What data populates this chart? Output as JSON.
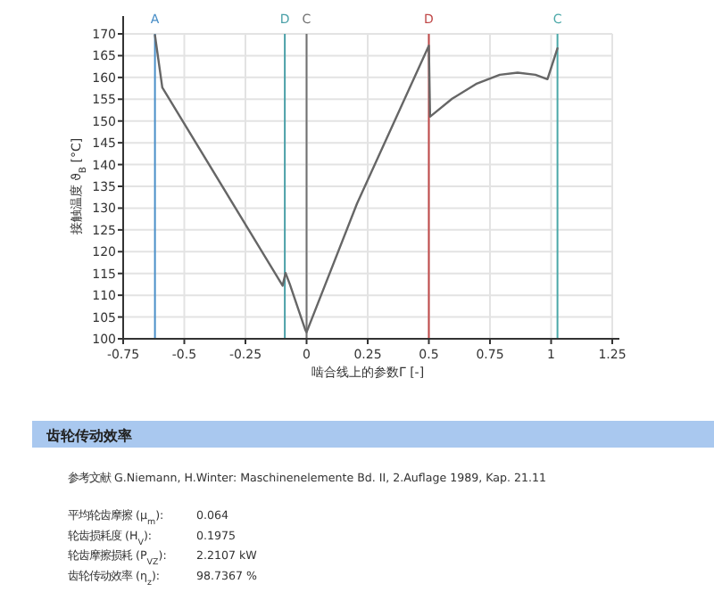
{
  "chart_data": {
    "type": "line",
    "xlabel": "啮合线上的参数Γ [-]",
    "ylabel": "接触温度 ϑ$_{B}$ [°C]",
    "x": [
      -0.62,
      -0.59,
      -0.098,
      -0.086,
      -0.069,
      -0.005,
      0,
      0.206,
      0.5,
      0.505,
      0.595,
      0.693,
      0.79,
      0.863,
      0.936,
      0.985,
      1.026
    ],
    "series": [
      {
        "color": "#666666",
        "values": [
          169.7,
          157.7,
          112.2,
          115.1,
          112.6,
          102,
          101.5,
          131,
          167.3,
          151,
          155.1,
          158.5,
          160.6,
          161.1,
          160.6,
          159.6,
          166.7
        ]
      }
    ],
    "xlim": [
      -0.75,
      1.25
    ],
    "ylim": [
      100,
      170
    ],
    "xticks": [
      -0.75,
      -0.5,
      -0.25,
      0,
      0.25,
      0.5,
      0.75,
      1,
      1.25
    ],
    "yticks": [
      100,
      105,
      110,
      115,
      120,
      125,
      130,
      135,
      140,
      145,
      150,
      155,
      160,
      165,
      170
    ],
    "grid": true,
    "marker": "none",
    "line_style": "solid",
    "ref_lines": [
      {
        "axis": "x",
        "value": -0.62,
        "label": "A",
        "color": "#4a8fc8"
      },
      {
        "axis": "x",
        "value": -0.089,
        "label": "D",
        "color": "#4aa0a8"
      },
      {
        "axis": "x",
        "value": 0,
        "label": "C",
        "color": "#707070"
      },
      {
        "axis": "x",
        "value": 0.5,
        "label": "D",
        "color": "#c04848"
      },
      {
        "axis": "x",
        "value": 1.026,
        "label": "C",
        "color": "#4aa8a8"
      }
    ],
    "annotations": [
      "齿轮传动效率",
      "参考文献 G.Niemann, H.Winter: Maschinenelemente Bd. II, 2.Auflage 1989, Kap. 21.11",
      "平均轮齿摩擦 (μ$_{m}$): 0.064",
      "轮齿损耗度 (H$_{V}$): 0.1975",
      "轮齿摩擦损耗 (P$_{VZ}$): 2.2107 kW",
      "齿轮传动效率 (η$_{z}$): 98.7367 %"
    ]
  }
}
